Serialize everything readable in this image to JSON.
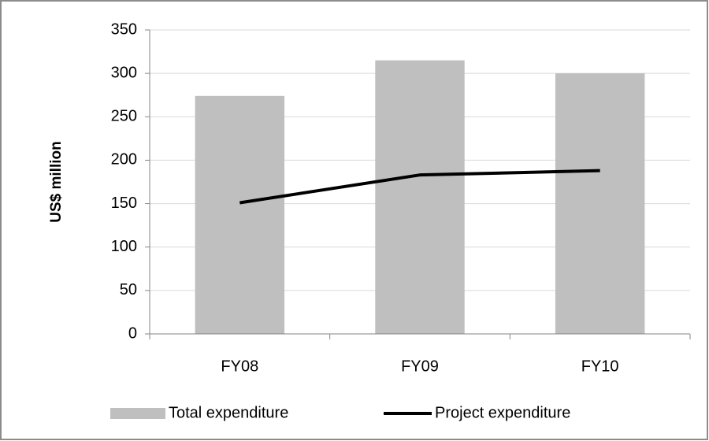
{
  "chart_data": {
    "type": "bar",
    "y_label": "US$ million",
    "categories": [
      "FY08",
      "FY09",
      "FY10"
    ],
    "series": [
      {
        "name": "Total expenditure",
        "type": "bar",
        "color": "#bfbfbf",
        "values": [
          274,
          315,
          300
        ]
      },
      {
        "name": "Project expenditure",
        "type": "line",
        "color": "#000000",
        "values": [
          151,
          183,
          188
        ]
      }
    ],
    "ylim": [
      0,
      350
    ],
    "yticks": [
      0,
      50,
      100,
      150,
      200,
      250,
      300,
      350
    ],
    "grid": true,
    "legend": "bottom"
  }
}
